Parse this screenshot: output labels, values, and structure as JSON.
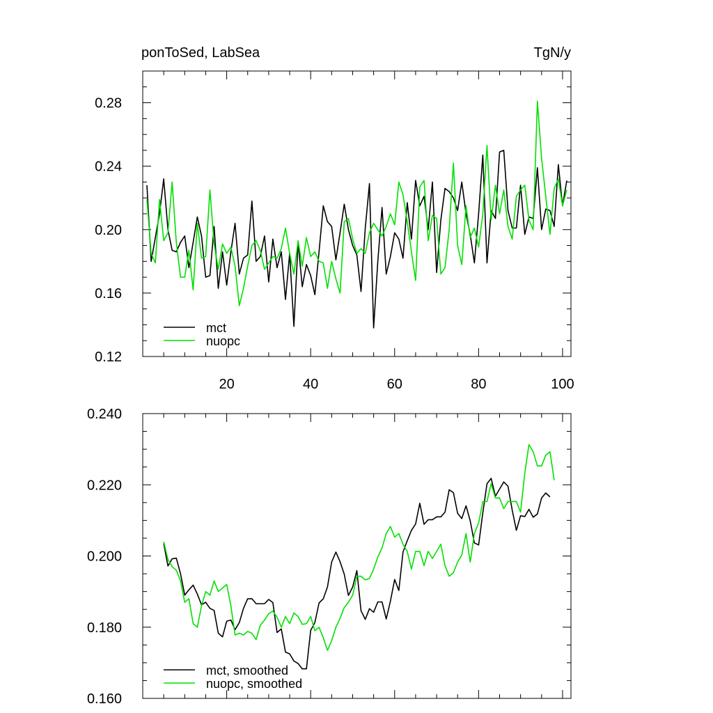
{
  "figure": {
    "title_left": "ponToSed, LabSea",
    "title_right": "TgN/y"
  },
  "colors": {
    "mct": "#000000",
    "nuopc": "#00e000"
  },
  "chart_data": [
    {
      "type": "line",
      "title": "ponToSed, LabSea",
      "units": "TgN/y",
      "xlim": [
        0,
        102
      ],
      "ylim": [
        0.12,
        0.3
      ],
      "xticks": [
        20,
        40,
        60,
        80,
        100
      ],
      "xtick_labels": [
        "20",
        "40",
        "60",
        "80",
        "100"
      ],
      "yticks": [
        0.12,
        0.16,
        0.2,
        0.24,
        0.28
      ],
      "ytick_labels": [
        "0.12",
        "0.16",
        "0.20",
        "0.24",
        "0.28"
      ],
      "legend": "bottom-left",
      "series": [
        {
          "name": "mct",
          "color": "#000000",
          "x_start": 1,
          "x_step": 1,
          "values": [
            0.228,
            0.18,
            0.195,
            0.21,
            0.232,
            0.2,
            0.187,
            0.186,
            0.192,
            0.196,
            0.176,
            0.192,
            0.208,
            0.196,
            0.17,
            0.171,
            0.202,
            0.163,
            0.186,
            0.165,
            0.186,
            0.204,
            0.172,
            0.182,
            0.184,
            0.218,
            0.18,
            0.183,
            0.196,
            0.167,
            0.194,
            0.176,
            0.186,
            0.156,
            0.185,
            0.139,
            0.192,
            0.164,
            0.178,
            0.171,
            0.159,
            0.186,
            0.215,
            0.205,
            0.202,
            0.181,
            0.198,
            0.216,
            0.2,
            0.19,
            0.184,
            0.161,
            0.201,
            0.229,
            0.138,
            0.18,
            0.214,
            0.172,
            0.183,
            0.198,
            0.194,
            0.182,
            0.217,
            0.194,
            0.231,
            0.215,
            0.221,
            0.2,
            0.23,
            0.173,
            0.206,
            0.226,
            0.224,
            0.22,
            0.212,
            0.23,
            0.21,
            0.197,
            0.179,
            0.21,
            0.247,
            0.179,
            0.212,
            0.207,
            0.249,
            0.25,
            0.212,
            0.201,
            0.201,
            0.228,
            0.197,
            0.208,
            0.207,
            0.239,
            0.2,
            0.213,
            0.212,
            0.202,
            0.241,
            0.215,
            0.231
          ]
        },
        {
          "name": "nuopc",
          "color": "#00e000",
          "x_start": 1,
          "x_step": 1,
          "values": [
            0.219,
            0.185,
            0.179,
            0.219,
            0.193,
            0.198,
            0.23,
            0.192,
            0.17,
            0.17,
            0.187,
            0.162,
            0.204,
            0.182,
            0.183,
            0.225,
            0.191,
            0.175,
            0.191,
            0.185,
            0.189,
            0.177,
            0.152,
            0.163,
            0.177,
            0.19,
            0.193,
            0.187,
            0.175,
            0.179,
            0.183,
            0.182,
            0.188,
            0.201,
            0.185,
            0.172,
            0.193,
            0.177,
            0.195,
            0.183,
            0.186,
            0.18,
            0.179,
            0.163,
            0.18,
            0.169,
            0.16,
            0.205,
            0.207,
            0.194,
            0.185,
            0.188,
            0.185,
            0.198,
            0.204,
            0.2,
            0.196,
            0.202,
            0.21,
            0.203,
            0.23,
            0.222,
            0.205,
            0.186,
            0.168,
            0.227,
            0.231,
            0.193,
            0.209,
            0.207,
            0.172,
            0.176,
            0.2,
            0.242,
            0.19,
            0.178,
            0.215,
            0.195,
            0.201,
            0.189,
            0.21,
            0.253,
            0.206,
            0.228,
            0.21,
            0.225,
            0.202,
            0.194,
            0.221,
            0.225,
            0.228,
            0.206,
            0.2,
            0.281,
            0.245,
            0.221,
            0.197,
            0.226,
            0.232,
            0.215,
            0.225
          ]
        }
      ]
    },
    {
      "type": "line",
      "title": "",
      "xlim": [
        0,
        102
      ],
      "ylim": [
        0.16,
        0.24
      ],
      "xticks": [
        20,
        40,
        60,
        80,
        100
      ],
      "xtick_labels": [
        "",
        "",
        "",
        "",
        ""
      ],
      "yticks": [
        0.16,
        0.18,
        0.2,
        0.22,
        0.24
      ],
      "ytick_labels": [
        "0.160",
        "0.180",
        "0.200",
        "0.220",
        "0.240"
      ],
      "legend": "bottom-left",
      "series": [
        {
          "name": "mct, smoothed",
          "color": "#000000",
          "x_start": 5,
          "x_step": 1,
          "values": [
            0.2035,
            0.1972,
            0.1992,
            0.1994,
            0.195,
            0.189,
            0.1905,
            0.1918,
            0.1893,
            0.1863,
            0.187,
            0.1853,
            0.1847,
            0.1783,
            0.1773,
            0.1817,
            0.182,
            0.1793,
            0.1813,
            0.1853,
            0.188,
            0.188,
            0.1866,
            0.1866,
            0.1866,
            0.1878,
            0.1869,
            0.1785,
            0.1795,
            0.173,
            0.1725,
            0.1705,
            0.1698,
            0.1683,
            0.1683,
            0.1791,
            0.1813,
            0.1868,
            0.188,
            0.1913,
            0.1983,
            0.2011,
            0.1984,
            0.1949,
            0.1889,
            0.1913,
            0.1959,
            0.1846,
            0.1822,
            0.1852,
            0.1842,
            0.1871,
            0.1871,
            0.1823,
            0.1873,
            0.1934,
            0.1903,
            0.2011,
            0.2043,
            0.2072,
            0.209,
            0.2148,
            0.2089,
            0.2102,
            0.2102,
            0.211,
            0.211,
            0.2123,
            0.2186,
            0.2178,
            0.212,
            0.2105,
            0.2141,
            0.2099,
            0.2037,
            0.2031,
            0.2121,
            0.2203,
            0.2218,
            0.2168,
            0.2188,
            0.2208,
            0.2196,
            0.2129,
            0.2072,
            0.2113,
            0.2111,
            0.2131,
            0.2109,
            0.2118,
            0.2163,
            0.2177,
            0.2166
          ]
        },
        {
          "name": "nuopc, smoothed",
          "color": "#00e000",
          "x_start": 5,
          "x_step": 1,
          "values": [
            0.204,
            0.199,
            0.197,
            0.196,
            0.193,
            0.187,
            0.188,
            0.181,
            0.18,
            0.186,
            0.19,
            0.189,
            0.193,
            0.19,
            0.191,
            0.192,
            0.186,
            0.1778,
            0.1783,
            0.1778,
            0.1788,
            0.1783,
            0.1765,
            0.1805,
            0.182,
            0.1838,
            0.1845,
            0.1828,
            0.18,
            0.183,
            0.181,
            0.184,
            0.183,
            0.1808,
            0.181,
            0.183,
            0.179,
            0.18,
            0.177,
            0.1735,
            0.1762,
            0.18,
            0.1825,
            0.1855,
            0.187,
            0.189,
            0.1943,
            0.1943,
            0.1933,
            0.1937,
            0.1963,
            0.1997,
            0.2023,
            0.2063,
            0.2083,
            0.2053,
            0.2063,
            0.2033,
            0.2013,
            0.1963,
            0.2013,
            0.2013,
            0.1973,
            0.2013,
            0.1993,
            0.2013,
            0.2033,
            0.1973,
            0.1943,
            0.1953,
            0.1983,
            0.2003,
            0.2063,
            0.1983,
            0.2063,
            0.2093,
            0.2153,
            0.2153,
            0.2203,
            0.2163,
            0.2163,
            0.2133,
            0.2153,
            0.2153,
            0.2153,
            0.2123,
            0.2233,
            0.2313,
            0.2293,
            0.2253,
            0.2253,
            0.2283,
            0.2293,
            0.2213
          ]
        }
      ]
    }
  ]
}
